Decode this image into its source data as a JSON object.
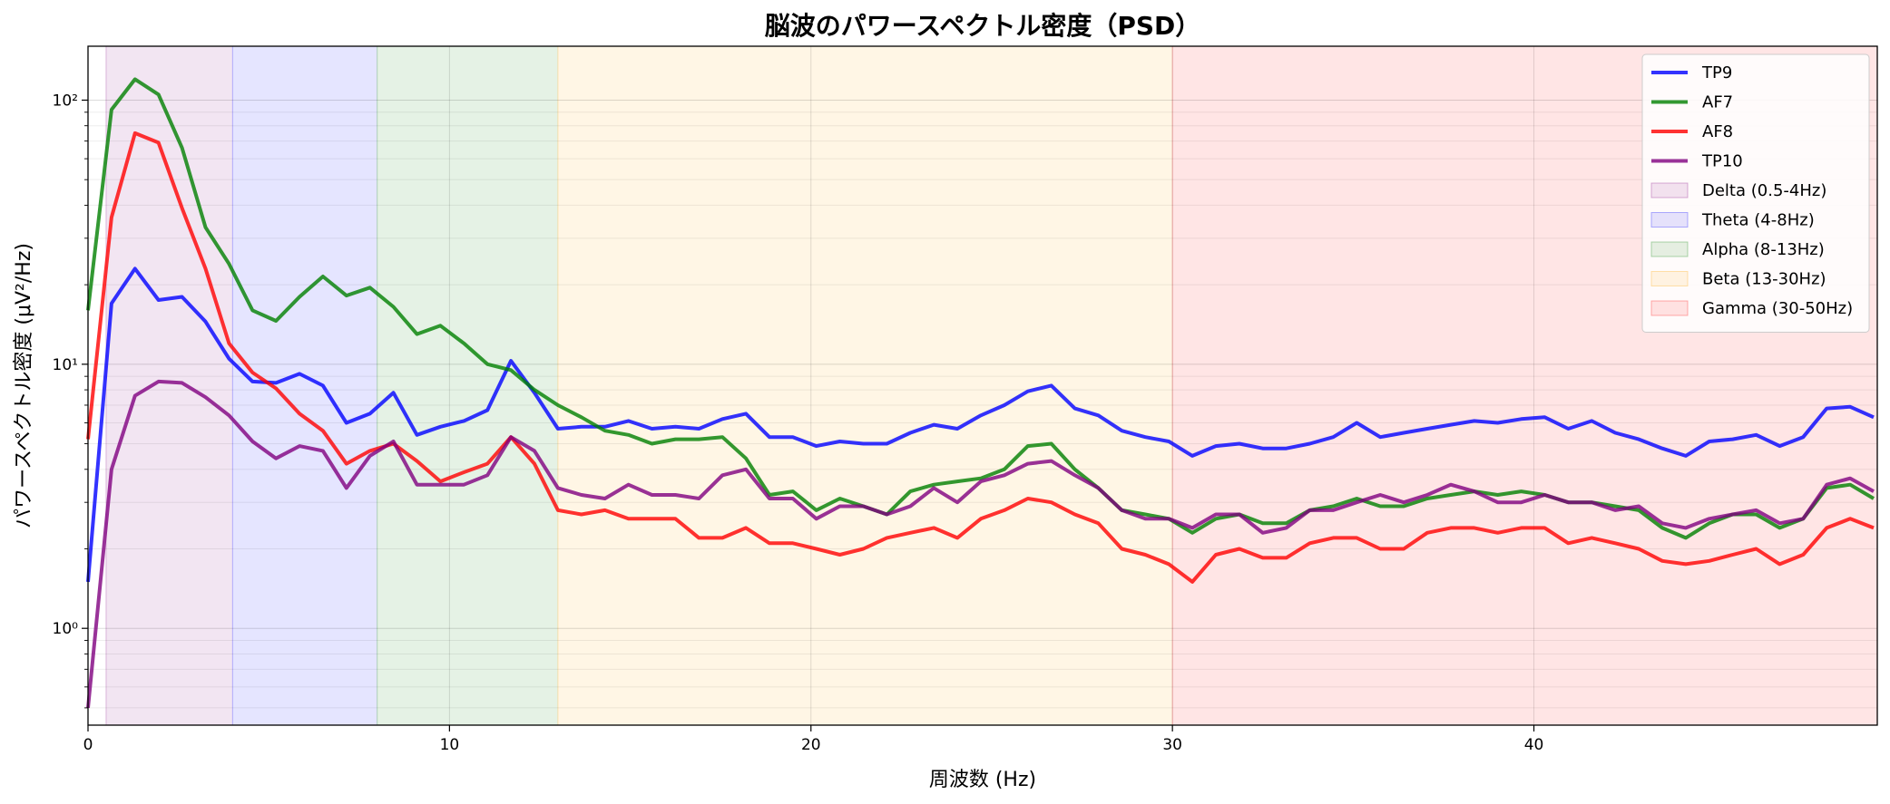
{
  "chart_data": {
    "type": "line",
    "title": "脳波のパワースペクトル密度（PSD）",
    "xlabel": "周波数 (Hz)",
    "ylabel": "パワースペクトル密度 (μV²/Hz)",
    "xlim": [
      0,
      49.5
    ],
    "ylim": [
      0.43,
      160
    ],
    "yscale": "log",
    "xticks": [
      0,
      10,
      20,
      30,
      40
    ],
    "yticks": [
      {
        "value": 1,
        "label": "10⁰"
      },
      {
        "value": 10,
        "label": "10¹"
      },
      {
        "value": 100,
        "label": "10²"
      }
    ],
    "grid": true,
    "legend_position": "top-right",
    "bands": [
      {
        "name": "Delta (0.5-4Hz)",
        "range": [
          0.5,
          4
        ],
        "color": "#800080"
      },
      {
        "name": "Theta (4-8Hz)",
        "range": [
          4,
          8
        ],
        "color": "#0000ff"
      },
      {
        "name": "Alpha (8-13Hz)",
        "range": [
          8,
          13
        ],
        "color": "#008000"
      },
      {
        "name": "Beta (13-30Hz)",
        "range": [
          13,
          30
        ],
        "color": "#ffa500"
      },
      {
        "name": "Gamma (30-50Hz)",
        "range": [
          30,
          49.5
        ],
        "color": "#ff0000"
      }
    ],
    "x": [
      0,
      0.65,
      1.3,
      1.95,
      2.6,
      3.25,
      3.9,
      4.55,
      5.2,
      5.85,
      6.5,
      7.15,
      7.8,
      8.45,
      9.1,
      9.75,
      10.4,
      11.05,
      11.7,
      12.35,
      13,
      13.65,
      14.3,
      14.95,
      15.6,
      16.25,
      16.9,
      17.55,
      18.2,
      18.85,
      19.5,
      20.15,
      20.8,
      21.45,
      22.1,
      22.75,
      23.4,
      24.05,
      24.7,
      25.35,
      26,
      26.65,
      27.3,
      27.95,
      28.6,
      29.25,
      29.9,
      30.55,
      31.2,
      31.85,
      32.5,
      33.15,
      33.8,
      34.45,
      35.1,
      35.75,
      36.4,
      37.05,
      37.7,
      38.35,
      39,
      39.65,
      40.3,
      40.95,
      41.6,
      42.25,
      42.9,
      43.55,
      44.2,
      44.85,
      45.5,
      46.15,
      46.8,
      47.45,
      48.1,
      48.75,
      49.4
    ],
    "series": [
      {
        "name": "TP9",
        "color": "#0000ff",
        "values": [
          1.5,
          17,
          23,
          17.5,
          18,
          14.5,
          10.5,
          8.6,
          8.5,
          9.2,
          8.3,
          6,
          6.5,
          7.8,
          5.4,
          5.8,
          6.1,
          6.7,
          10.3,
          7.8,
          5.7,
          5.8,
          5.8,
          6.1,
          5.7,
          5.8,
          5.7,
          6.2,
          6.5,
          5.3,
          5.3,
          4.9,
          5.1,
          5.0,
          5.0,
          5.5,
          5.9,
          5.7,
          6.4,
          7.0,
          7.9,
          8.3,
          6.8,
          6.4,
          5.6,
          5.3,
          5.1,
          4.5,
          4.9,
          5.0,
          4.8,
          4.8,
          5.0,
          5.3,
          6.0,
          5.3,
          5.5,
          5.7,
          5.9,
          6.1,
          6.0,
          6.2,
          6.3,
          5.7,
          6.1,
          5.5,
          5.2,
          4.8,
          4.5,
          5.1,
          5.2,
          5.4,
          4.9,
          5.3,
          6.8,
          6.9,
          6.3
        ]
      },
      {
        "name": "AF7",
        "color": "#008000",
        "values": [
          16,
          92,
          120,
          105,
          66,
          33,
          24,
          16,
          14.6,
          18,
          21.5,
          18.2,
          19.5,
          16.5,
          13,
          14,
          12,
          10,
          9.5,
          8,
          7,
          6.3,
          5.6,
          5.4,
          5.0,
          5.2,
          5.2,
          5.3,
          4.4,
          3.2,
          3.3,
          2.8,
          3.1,
          2.9,
          2.7,
          3.3,
          3.5,
          3.6,
          3.7,
          4.0,
          4.9,
          5.0,
          4.0,
          3.4,
          2.8,
          2.7,
          2.6,
          2.3,
          2.6,
          2.7,
          2.5,
          2.5,
          2.8,
          2.9,
          3.1,
          2.9,
          2.9,
          3.1,
          3.2,
          3.3,
          3.2,
          3.3,
          3.2,
          3.0,
          3.0,
          2.9,
          2.8,
          2.4,
          2.2,
          2.5,
          2.7,
          2.7,
          2.4,
          2.6,
          3.4,
          3.5,
          3.1
        ]
      },
      {
        "name": "AF8",
        "color": "#ff0000",
        "values": [
          5.2,
          36,
          75,
          69,
          39,
          23,
          12,
          9.3,
          8.1,
          6.5,
          5.6,
          4.2,
          4.7,
          5.0,
          4.3,
          3.6,
          3.9,
          4.2,
          5.3,
          4.2,
          2.8,
          2.7,
          2.8,
          2.6,
          2.6,
          2.6,
          2.2,
          2.2,
          2.4,
          2.1,
          2.1,
          2.0,
          1.9,
          2.0,
          2.2,
          2.3,
          2.4,
          2.2,
          2.6,
          2.8,
          3.1,
          3.0,
          2.7,
          2.5,
          2.0,
          1.9,
          1.75,
          1.5,
          1.9,
          2.0,
          1.85,
          1.85,
          2.1,
          2.2,
          2.2,
          2.0,
          2.0,
          2.3,
          2.4,
          2.4,
          2.3,
          2.4,
          2.4,
          2.1,
          2.2,
          2.1,
          2.0,
          1.8,
          1.75,
          1.8,
          1.9,
          2.0,
          1.75,
          1.9,
          2.4,
          2.6,
          2.4
        ]
      },
      {
        "name": "TP10",
        "color": "#800080",
        "values": [
          0.5,
          4,
          7.6,
          8.6,
          8.5,
          7.5,
          6.4,
          5.1,
          4.4,
          4.9,
          4.7,
          3.4,
          4.5,
          5.1,
          3.5,
          3.5,
          3.5,
          3.8,
          5.3,
          4.7,
          3.4,
          3.2,
          3.1,
          3.5,
          3.2,
          3.2,
          3.1,
          3.8,
          4.0,
          3.1,
          3.1,
          2.6,
          2.9,
          2.9,
          2.7,
          2.9,
          3.4,
          3.0,
          3.6,
          3.8,
          4.2,
          4.3,
          3.8,
          3.4,
          2.8,
          2.6,
          2.6,
          2.4,
          2.7,
          2.7,
          2.3,
          2.4,
          2.8,
          2.8,
          3.0,
          3.2,
          3.0,
          3.2,
          3.5,
          3.3,
          3.0,
          3.0,
          3.2,
          3.0,
          3.0,
          2.8,
          2.9,
          2.5,
          2.4,
          2.6,
          2.7,
          2.8,
          2.5,
          2.6,
          3.5,
          3.7,
          3.3
        ]
      }
    ]
  }
}
